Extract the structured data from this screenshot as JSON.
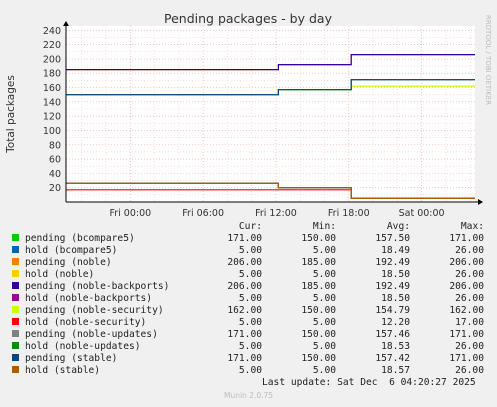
{
  "chart_data": {
    "type": "line",
    "title": "Pending packages - by day",
    "ylabel": "Total packages",
    "watermark": "RRDTOOL / TOBI OETIKER",
    "ylim": [
      0,
      246
    ],
    "yticks": [
      20,
      40,
      60,
      80,
      100,
      120,
      140,
      160,
      180,
      200,
      220,
      240
    ],
    "xlim": [
      "Fri 00:00-5.3h",
      "Sat 00:00+4.4h"
    ],
    "xticks": [
      "Fri 00:00",
      "Fri 06:00",
      "Fri 12:00",
      "Fri 18:00",
      "Sat 00:00"
    ],
    "x_hours_from_fri_0000": [
      -5.3,
      12.2,
      18.2,
      28.4
    ],
    "grid": true,
    "columns": [
      "Cur:",
      "Min:",
      "Avg:",
      "Max:"
    ],
    "series": [
      {
        "name": "pending (bcompare5)",
        "color": "#00cc00",
        "cur": "171.00",
        "min": "150.00",
        "avg": "157.50",
        "max": "171.00",
        "values": [
          150,
          157,
          171,
          171
        ]
      },
      {
        "name": "hold (bcompare5)",
        "color": "#0066b3",
        "cur": "5.00",
        "min": "5.00",
        "avg": "18.49",
        "max": "26.00",
        "values": [
          26,
          20,
          5,
          5
        ]
      },
      {
        "name": "pending (noble)",
        "color": "#ff8000",
        "cur": "206.00",
        "min": "185.00",
        "avg": "192.49",
        "max": "206.00",
        "values": [
          185,
          192,
          206,
          206
        ]
      },
      {
        "name": "hold (noble)",
        "color": "#ffcc00",
        "cur": "5.00",
        "min": "5.00",
        "avg": "18.50",
        "max": "26.00",
        "values": [
          26,
          20,
          5,
          5
        ]
      },
      {
        "name": "pending (noble-backports)",
        "color": "#330099",
        "cur": "206.00",
        "min": "185.00",
        "avg": "192.49",
        "max": "206.00",
        "values": [
          185,
          192,
          206,
          206
        ]
      },
      {
        "name": "hold (noble-backports)",
        "color": "#990099",
        "cur": "5.00",
        "min": "5.00",
        "avg": "18.50",
        "max": "26.00",
        "values": [
          26,
          20,
          5,
          5
        ]
      },
      {
        "name": "pending (noble-security)",
        "color": "#ccff00",
        "cur": "162.00",
        "min": "150.00",
        "avg": "154.79",
        "max": "162.00",
        "values": [
          150,
          157,
          162,
          162
        ]
      },
      {
        "name": "hold (noble-security)",
        "color": "#ff0000",
        "cur": "5.00",
        "min": "5.00",
        "avg": "12.20",
        "max": "17.00",
        "values": [
          17,
          17,
          5,
          5
        ]
      },
      {
        "name": "pending (noble-updates)",
        "color": "#808080",
        "cur": "171.00",
        "min": "150.00",
        "avg": "157.46",
        "max": "171.00",
        "values": [
          150,
          157,
          171,
          171
        ]
      },
      {
        "name": "hold (noble-updates)",
        "color": "#008f00",
        "cur": "5.00",
        "min": "5.00",
        "avg": "18.53",
        "max": "26.00",
        "values": [
          26,
          20,
          5,
          5
        ]
      },
      {
        "name": "pending (stable)",
        "color": "#00487d",
        "cur": "171.00",
        "min": "150.00",
        "avg": "157.42",
        "max": "171.00",
        "values": [
          150,
          157,
          171,
          171
        ]
      },
      {
        "name": "hold (stable)",
        "color": "#b35a00",
        "cur": "5.00",
        "min": "5.00",
        "avg": "18.57",
        "max": "26.00",
        "values": [
          26,
          20,
          5,
          5
        ]
      }
    ]
  },
  "last_update": "Last update: Sat Dec  6 04:20:27 2025",
  "footer": "Munin 2.0.75"
}
